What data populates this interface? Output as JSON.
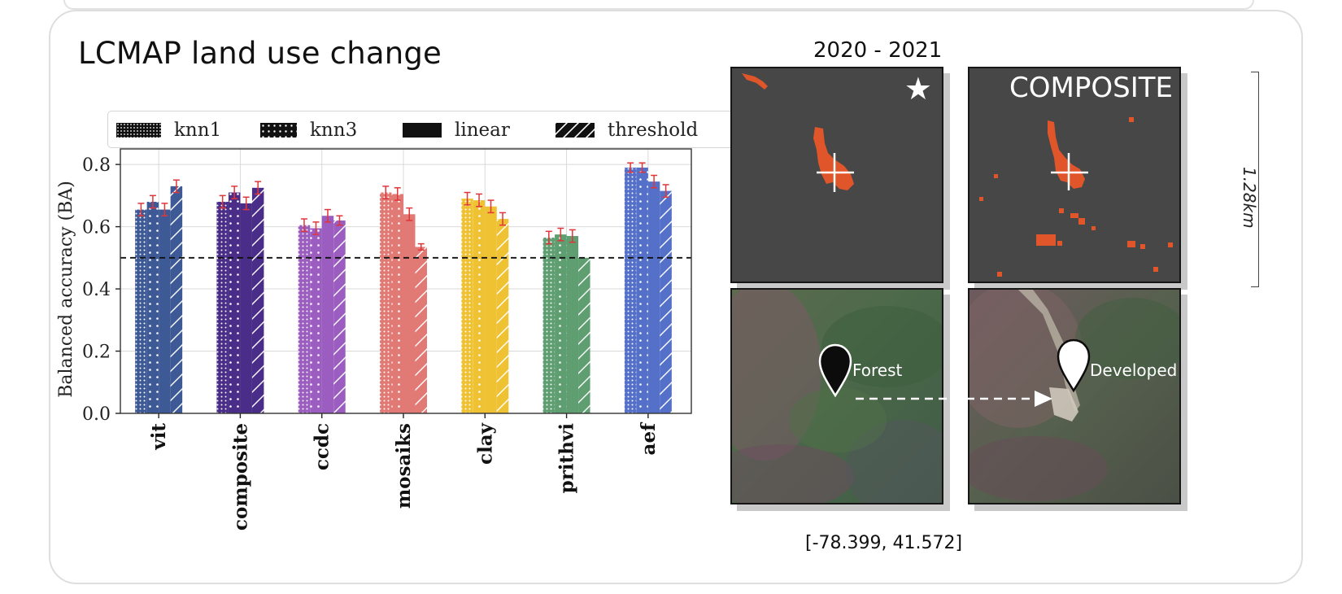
{
  "title": "LCMAP land use change",
  "period": "2020 - 2021",
  "composite_label": "COMPOSITE",
  "scale_label": "1.28km",
  "coordinates": "[-78.399, 41.572]",
  "pins": {
    "before": "Forest",
    "after": "Developed"
  },
  "icons": {
    "star": "star-icon",
    "pin_before": "map-pin-black-icon",
    "pin_after": "map-pin-white-icon",
    "crosshair": "crosshair-icon",
    "arrow": "dashed-arrow-icon"
  },
  "legend": [
    {
      "label": "knn1",
      "pattern": "dense-dots"
    },
    {
      "label": "knn3",
      "pattern": "sparse-dots"
    },
    {
      "label": "linear",
      "pattern": "solid"
    },
    {
      "label": "threshold",
      "pattern": "hatch"
    }
  ],
  "chart_data": {
    "type": "bar",
    "ylabel": "Balanced accuracy (BA)",
    "ylim": [
      0,
      0.85
    ],
    "yticks": [
      "0.0",
      "0.2",
      "0.4",
      "0.6",
      "0.8"
    ],
    "reference_line": 0.5,
    "grid": true,
    "legend_position": "top",
    "categories": [
      "vit",
      "composite",
      "ccdc",
      "mosaiks",
      "clay",
      "prithvi",
      "aef"
    ],
    "category_colors": [
      "#3d5a96",
      "#4a2d88",
      "#9b5ec0",
      "#e17a75",
      "#efc233",
      "#5e9e70",
      "#5570c8"
    ],
    "error_bar_color": "#e0363a",
    "series": [
      {
        "name": "knn1",
        "values": [
          0.655,
          0.68,
          0.605,
          0.71,
          0.69,
          0.565,
          0.79
        ],
        "errors": [
          0.02,
          0.02,
          0.02,
          0.02,
          0.02,
          0.02,
          0.015
        ]
      },
      {
        "name": "knn3",
        "values": [
          0.68,
          0.71,
          0.595,
          0.705,
          0.685,
          0.575,
          0.79
        ],
        "errors": [
          0.02,
          0.02,
          0.02,
          0.02,
          0.02,
          0.02,
          0.015
        ]
      },
      {
        "name": "linear",
        "values": [
          0.655,
          0.675,
          0.635,
          0.64,
          0.665,
          0.57,
          0.745
        ],
        "errors": [
          0.02,
          0.02,
          0.02,
          0.02,
          0.02,
          0.02,
          0.02
        ]
      },
      {
        "name": "threshold",
        "values": [
          0.73,
          0.725,
          0.62,
          0.535,
          0.625,
          0.5,
          0.715
        ],
        "errors": [
          0.02,
          0.02,
          0.015,
          0.01,
          0.02,
          0.0,
          0.02
        ]
      }
    ]
  }
}
